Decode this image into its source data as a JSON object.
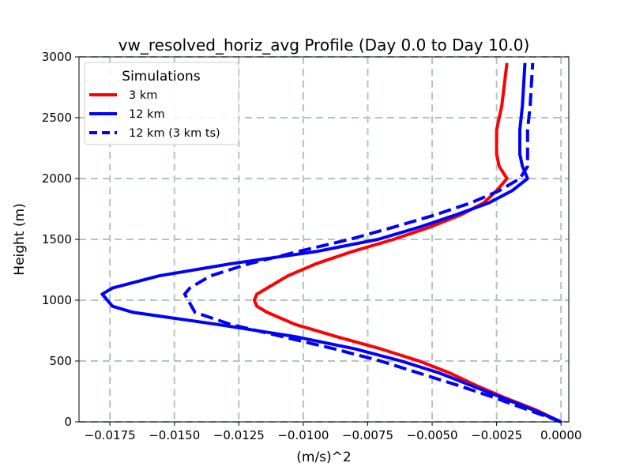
{
  "chart_data": {
    "type": "line",
    "title": "vw_resolved_horiz_avg Profile (Day 0.0 to Day 10.0)",
    "xlabel": "(m/s)^2",
    "ylabel": "Height (m)",
    "xlim": [
      -0.0187,
      0.0003
    ],
    "ylim": [
      0,
      3000
    ],
    "xticks": [
      -0.0175,
      -0.015,
      -0.0125,
      -0.01,
      -0.0075,
      -0.005,
      -0.0025,
      0.0
    ],
    "xtick_labels": [
      "−0.0175",
      "−0.0150",
      "−0.0125",
      "−0.0100",
      "−0.0075",
      "−0.0050",
      "−0.0025",
      "0.0000"
    ],
    "yticks": [
      0,
      500,
      1000,
      1500,
      2000,
      2500,
      3000
    ],
    "ytick_labels": [
      "0",
      "500",
      "1000",
      "1500",
      "2000",
      "2500",
      "3000"
    ],
    "grid": true,
    "legend": {
      "title": "Simulations",
      "position": "top-left"
    },
    "series": [
      {
        "name": "3 km",
        "color": "#ff0000",
        "style": "solid",
        "x": [
          0.0,
          -0.001,
          -0.0022,
          -0.0033,
          -0.0043,
          -0.0055,
          -0.007,
          -0.0087,
          -0.0103,
          -0.0114,
          -0.0118,
          -0.0119,
          -0.0118,
          -0.0114,
          -0.0106,
          -0.0095,
          -0.0081,
          -0.0065,
          -0.0051,
          -0.0039,
          -0.003,
          -0.0025,
          -0.0021,
          -0.0024,
          -0.0025,
          -0.0025,
          -0.0023,
          -0.0021
        ],
        "y": [
          0,
          100,
          200,
          300,
          400,
          500,
          600,
          700,
          800,
          900,
          950,
          1000,
          1050,
          1100,
          1200,
          1300,
          1400,
          1500,
          1600,
          1700,
          1800,
          1900,
          2000,
          2100,
          2200,
          2400,
          2600,
          2950
        ]
      },
      {
        "name": "12 km",
        "color": "#0000ff",
        "style": "solid",
        "x": [
          0.0,
          -0.0011,
          -0.0023,
          -0.0035,
          -0.0047,
          -0.0062,
          -0.008,
          -0.0103,
          -0.0133,
          -0.0166,
          -0.0174,
          -0.0178,
          -0.0174,
          -0.0156,
          -0.0128,
          -0.0095,
          -0.0071,
          -0.0055,
          -0.0041,
          -0.0028,
          -0.0019,
          -0.0013,
          -0.0015,
          -0.0016,
          -0.0016,
          -0.0015,
          -0.0014
        ],
        "y": [
          0,
          100,
          200,
          300,
          400,
          500,
          600,
          700,
          800,
          900,
          950,
          1050,
          1100,
          1200,
          1300,
          1400,
          1500,
          1600,
          1700,
          1800,
          1900,
          2000,
          2100,
          2200,
          2400,
          2600,
          2950
        ]
      },
      {
        "name": "12 km (3 km ts)",
        "color": "#0000ff",
        "style": "dashed",
        "x": [
          0.0,
          -0.0013,
          -0.0026,
          -0.004,
          -0.0055,
          -0.007,
          -0.0088,
          -0.0108,
          -0.0128,
          -0.0142,
          -0.0146,
          -0.0144,
          -0.0136,
          -0.0121,
          -0.0102,
          -0.0082,
          -0.0065,
          -0.0049,
          -0.0035,
          -0.0024,
          -0.0016,
          -0.0013,
          -0.0013,
          -0.0013,
          -0.0012,
          -0.0011
        ],
        "y": [
          0,
          100,
          200,
          300,
          400,
          500,
          600,
          700,
          800,
          900,
          1050,
          1100,
          1200,
          1300,
          1400,
          1500,
          1600,
          1700,
          1800,
          1900,
          2000,
          2100,
          2200,
          2400,
          2600,
          2950
        ]
      }
    ]
  }
}
